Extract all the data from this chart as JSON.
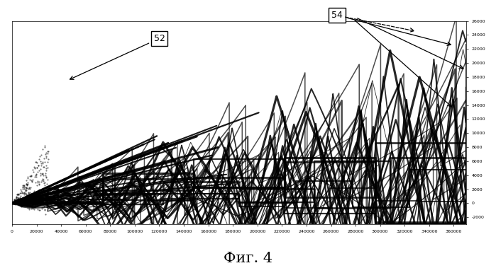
{
  "title": "Фиг. 4",
  "label_52": "52",
  "label_54": "54",
  "x_min": 0,
  "x_max": 370000,
  "y_min": -3000,
  "y_max": 26000,
  "background_color": "#ffffff",
  "line_color": "#000000",
  "fig_width": 6.99,
  "fig_height": 3.79,
  "dpi": 100,
  "seed": 7,
  "n_triangle_signals": 18,
  "n_fan_lines": 20,
  "tick_fontsize": 4.5
}
